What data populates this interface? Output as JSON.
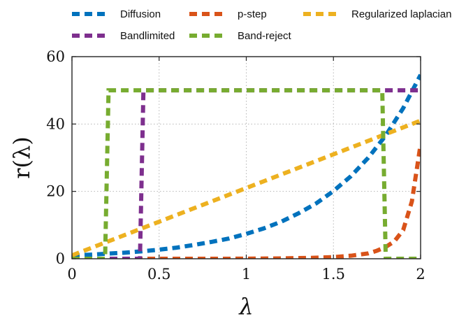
{
  "chart_data": {
    "type": "line",
    "xlabel": "λ",
    "ylabel": "r(λ)",
    "xlim": [
      0,
      2
    ],
    "ylim": [
      0,
      60
    ],
    "xticks": [
      0,
      0.5,
      1,
      1.5,
      2
    ],
    "xtick_labels": [
      "0",
      "0.5",
      "1",
      "1.5",
      "2"
    ],
    "yticks": [
      0,
      20,
      40,
      60
    ],
    "ytick_labels": [
      "0",
      "20",
      "40",
      "60"
    ],
    "grid": true,
    "legend_position": "top",
    "series": [
      {
        "name": "Diffusion",
        "color": "#0072BD",
        "x": [
          0,
          0.1,
          0.2,
          0.3,
          0.4,
          0.5,
          0.6,
          0.7,
          0.8,
          0.9,
          1.0,
          1.1,
          1.2,
          1.3,
          1.4,
          1.5,
          1.6,
          1.7,
          1.8,
          1.9,
          2.0
        ],
        "y": [
          1.0,
          1.2,
          1.5,
          1.8,
          2.2,
          2.7,
          3.3,
          4.1,
          5.0,
          6.0,
          7.4,
          9.0,
          11.0,
          13.5,
          16.4,
          20.1,
          24.5,
          30.0,
          36.6,
          44.7,
          54.6
        ]
      },
      {
        "name": "p-step",
        "color": "#D95319",
        "x": [
          0,
          0.2,
          0.4,
          0.6,
          0.8,
          1.0,
          1.2,
          1.4,
          1.5,
          1.6,
          1.7,
          1.75,
          1.8,
          1.85,
          1.9,
          1.95,
          2.0
        ],
        "y": [
          0,
          0,
          0,
          0,
          0,
          0.02,
          0.1,
          0.3,
          0.5,
          0.9,
          1.6,
          2.4,
          3.5,
          5.2,
          8.5,
          17,
          34
        ]
      },
      {
        "name": "Regularized laplacian",
        "color": "#EDB120",
        "x": [
          0,
          0.25,
          0.5,
          0.75,
          1.0,
          1.25,
          1.5,
          1.75,
          2.0
        ],
        "y": [
          1.0,
          6.0,
          11.0,
          16.0,
          21.0,
          26.0,
          31.0,
          36.0,
          41.0
        ]
      },
      {
        "name": "Bandlimited",
        "color": "#7E2F8E",
        "x": [
          0,
          0.39,
          0.4,
          0.41,
          1.8,
          2.0
        ],
        "y": [
          0,
          0,
          25,
          50,
          50,
          50
        ]
      },
      {
        "name": "Band-reject",
        "color": "#77AC30",
        "x": [
          0,
          0.19,
          0.2,
          0.21,
          1.0,
          1.78,
          1.79,
          1.8,
          2.0
        ],
        "y": [
          0,
          0,
          25,
          50,
          50,
          50,
          25,
          0,
          0
        ]
      }
    ]
  }
}
